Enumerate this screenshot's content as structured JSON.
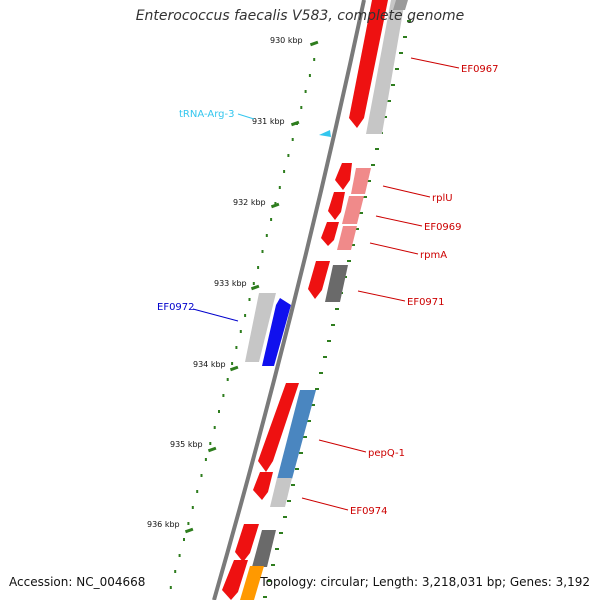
{
  "title": "Enterococcus faecalis V583, complete genome",
  "footer": {
    "accession": "Accession: NC_004668",
    "summary": "Topology: circular; Length: 3,218,031 bp; Genes: 3,192"
  },
  "colors": {
    "backbone": "#7a7a7a",
    "kbp_tick": "#2e7d1e",
    "cds_red": "#ee1111",
    "cds_pink": "#f08a8a",
    "cds_light_grey": "#c6c6c6",
    "cds_dark_grey": "#6a6a6a",
    "cds_blue": "#1010ee",
    "cds_steelblue": "#4a86c0",
    "cds_orange": "#ff9900",
    "trna": "#33c6ee",
    "label_red": "#cc0000",
    "label_blue": "#0000cc",
    "label_cyan": "#33c6ee"
  },
  "scale": {
    "unit": "kbp",
    "labels": [
      "930 kbp",
      "931 kbp",
      "932 kbp",
      "933 kbp",
      "934 kbp",
      "935 kbp",
      "936 kbp"
    ]
  },
  "features": [
    {
      "label": "EF0967",
      "type": "CDS",
      "label_color": "red"
    },
    {
      "label": "tRNA-Arg-3",
      "type": "tRNA",
      "label_color": "cyan"
    },
    {
      "label": "rplU",
      "type": "CDS",
      "label_color": "red"
    },
    {
      "label": "EF0969",
      "type": "CDS",
      "label_color": "red"
    },
    {
      "label": "rpmA",
      "type": "CDS",
      "label_color": "red"
    },
    {
      "label": "EF0971",
      "type": "CDS",
      "label_color": "red"
    },
    {
      "label": "EF0972",
      "type": "CDS",
      "label_color": "blue"
    },
    {
      "label": "pepQ-1",
      "type": "CDS",
      "label_color": "red"
    },
    {
      "label": "EF0974",
      "type": "CDS",
      "label_color": "red"
    }
  ]
}
